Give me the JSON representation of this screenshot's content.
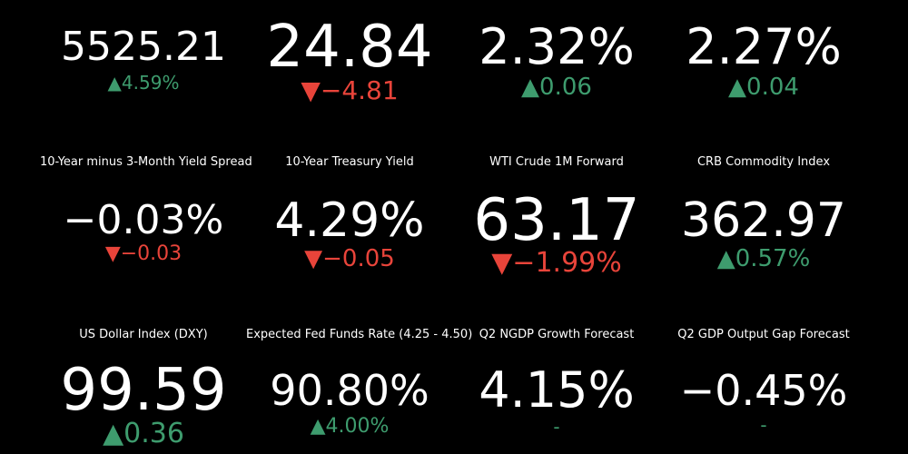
{
  "tiles": [
    {
      "value": "5525.21",
      "change": "▲4.59%",
      "change_color": "#3e9c6e"
    },
    {
      "value": "24.84",
      "change": "▼−4.81",
      "change_color": "#e8443a"
    },
    {
      "value": "2.32%",
      "change": "▲0.06",
      "change_color": "#3e9c6e"
    },
    {
      "value": "2.27%",
      "change": "▲0.04",
      "change_color": "#3e9c6e"
    },
    {
      "label": "10-Year minus 3-Month Yield Spread",
      "value": "−0.03%",
      "change": "▼−0.03",
      "change_color": "#e8443a"
    },
    {
      "label": "10-Year Treasury Yield",
      "value": "4.29%",
      "change": "▼−0.05",
      "change_color": "#e8443a"
    },
    {
      "label": "WTI Crude 1M Forward",
      "value": "63.17",
      "change": "▼−1.99%",
      "change_color": "#e8443a"
    },
    {
      "label": "CRB Commodity Index",
      "value": "362.97",
      "change": "▲0.57%",
      "change_color": "#3e9c6e"
    },
    {
      "label": "US Dollar Index (DXY)",
      "value": "99.59",
      "change": "▲0.36",
      "change_color": "#3e9c6e"
    },
    {
      "label": "Expected Fed Funds Rate (4.25 - 4.50)",
      "value": "90.80%",
      "change": "▲4.00%",
      "change_color": "#3e9c6e"
    },
    {
      "label": "Q2 NGDP Growth Forecast",
      "value": "4.15%",
      "change": "-",
      "change_color": "#3e9c6e"
    },
    {
      "label": "Q2 GDP Output Gap Forecast",
      "value": "−0.45%",
      "change": "-",
      "change_color": "#3e9c6e"
    }
  ]
}
